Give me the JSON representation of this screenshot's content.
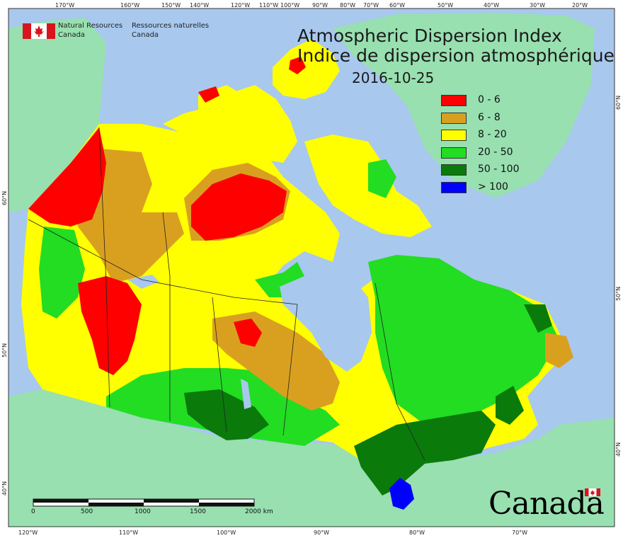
{
  "title": {
    "english": "Atmospheric Dispersion Index",
    "french": "Indice de dispersion atmosphérique",
    "date": "2016-10-25"
  },
  "legend": [
    {
      "label": "0 - 6",
      "color": "#ff0000"
    },
    {
      "label": "6 - 8",
      "color": "#d9a020"
    },
    {
      "label": "8 - 20",
      "color": "#ffff00"
    },
    {
      "label": "20 - 50",
      "color": "#22dd22"
    },
    {
      "label": "50 - 100",
      "color": "#0a7a0a"
    },
    {
      "label": "> 100",
      "color": "#0000ff"
    }
  ],
  "agency": {
    "name_en_line1": "Natural Resources",
    "name_en_line2": "Canada",
    "name_fr_line1": "Ressources naturelles",
    "name_fr_line2": "Canada"
  },
  "wordmark": "Canada",
  "scale_bar": {
    "labels": [
      "0",
      "500",
      "1000",
      "1500",
      "2000 km"
    ]
  },
  "graticule": {
    "top": [
      "170°W",
      "160°W",
      "150°W",
      "140°W",
      "120°W",
      "110°W",
      "100°W",
      "90°W",
      "80°W",
      "70°W",
      "60°W",
      "50°W",
      "40°W",
      "30°W",
      "20°W"
    ],
    "bottom": [
      "120°W",
      "110°W",
      "100°W",
      "90°W",
      "80°W",
      "70°W"
    ],
    "left": [
      "60°N",
      "50°N",
      "40°N"
    ],
    "right": [
      "60°N",
      "50°N",
      "40°N"
    ]
  },
  "colors": {
    "ocean": "#a8c8ee",
    "foreign_land": "#98e0b0",
    "lake": "#a8c8ee",
    "border": "#222222"
  }
}
